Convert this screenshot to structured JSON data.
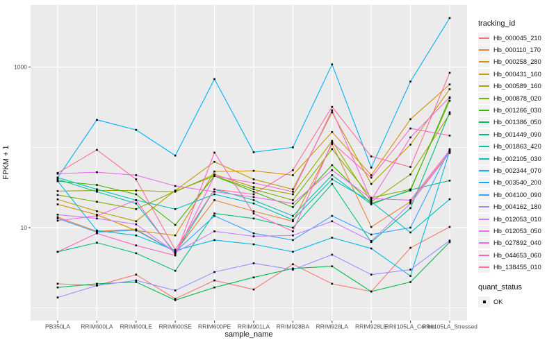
{
  "chart_data": {
    "type": "line",
    "title": "",
    "xlabel": "sample_name",
    "ylabel": "FPKM + 1",
    "y_scale": "log10",
    "y_major_breaks": [
      10,
      1000
    ],
    "y_minor_breaks": [
      1,
      100
    ],
    "ylim": [
      0.9,
      5600
    ],
    "grid": true,
    "legend": {
      "title": "tracking_id",
      "position": "right"
    },
    "point_legend": {
      "title": "quant_status",
      "items": [
        {
          "label": "OK",
          "shape": "square",
          "color": "#000000"
        }
      ]
    },
    "categories": [
      "PB350LA",
      "RRIM600LA",
      "RRIM600LE",
      "RRIM600SE",
      "RRIM600PE",
      "RRIM901LA",
      "RRIM928BA",
      "RRIM928LA",
      "RRIM928LE",
      "RRII105LA_Control",
      "RRII105LA_Stressed"
    ],
    "series": [
      {
        "name": "Hb_000045_210",
        "color": "#F8766D",
        "values": [
          2.0,
          1.9,
          2.6,
          1.3,
          2.2,
          1.7,
          3.5,
          2.0,
          1.6,
          5.6,
          10.2
        ]
      },
      {
        "name": "Hb_000110_170",
        "color": "#EA8331",
        "values": [
          13.5,
          9.0,
          9.5,
          5.0,
          22,
          16,
          12,
          110,
          10.2,
          21,
          88
        ]
      },
      {
        "name": "Hb_000258_280",
        "color": "#D89000",
        "values": [
          19.5,
          14.5,
          9.2,
          8.0,
          50,
          51,
          45,
          155,
          45,
          224,
          607
        ]
      },
      {
        "name": "Hb_000431_160",
        "color": "#C09B00",
        "values": [
          22.5,
          16,
          12,
          29,
          66,
          40,
          30,
          273,
          35,
          108,
          530
        ]
      },
      {
        "name": "Hb_000589_160",
        "color": "#A3A500",
        "values": [
          28.5,
          29,
          29,
          28,
          46,
          32,
          26,
          120,
          21,
          46,
          260
        ]
      },
      {
        "name": "Hb_000878_020",
        "color": "#7CAE00",
        "values": [
          25.5,
          21,
          17,
          28.5,
          44,
          30,
          22,
          95,
          23.5,
          30,
          380
        ]
      },
      {
        "name": "Hb_001266_030",
        "color": "#39B600",
        "values": [
          38,
          34,
          26,
          10.8,
          44,
          28,
          18,
          60,
          20,
          29,
          410
        ]
      },
      {
        "name": "Hb_001386_050",
        "color": "#00BB4E",
        "values": [
          1.8,
          2.0,
          2.1,
          1.25,
          1.8,
          2.4,
          3.1,
          3.3,
          1.6,
          2.1,
          6.6
        ]
      },
      {
        "name": "Hb_001449_090",
        "color": "#00BF7D",
        "values": [
          5.0,
          6.5,
          4.8,
          2.9,
          15,
          13,
          10,
          35,
          6.6,
          17.5,
          273
        ]
      },
      {
        "name": "Hb_001863_420",
        "color": "#00C1A3",
        "values": [
          40,
          28,
          20,
          4.8,
          30,
          22,
          14,
          45,
          19.5,
          29.5,
          38.5
        ]
      },
      {
        "name": "Hb_002105_030",
        "color": "#00BFC4",
        "values": [
          42,
          30,
          22,
          17,
          26,
          20,
          12.5,
          40,
          21,
          8.7,
          22.6
        ]
      },
      {
        "name": "Hb_002344_070",
        "color": "#00BAE0",
        "values": [
          38,
          9.2,
          8.0,
          5.2,
          7.0,
          6.2,
          5.0,
          7.5,
          5.5,
          2.5,
          90
        ]
      },
      {
        "name": "Hb_003540_200",
        "color": "#00B0F6",
        "values": [
          42,
          220,
          165,
          79,
          708,
          87,
          100,
          1080,
          56,
          660,
          4075
        ]
      },
      {
        "name": "Hb_004100_090",
        "color": "#35A2FF",
        "values": [
          13,
          8.8,
          9.3,
          5.0,
          14,
          8.5,
          7.0,
          14,
          8.2,
          10,
          95
        ]
      },
      {
        "name": "Hb_004162_180",
        "color": "#9590FF",
        "values": [
          1.35,
          1.9,
          2.2,
          1.65,
          2.8,
          3.6,
          3.0,
          4.6,
          2.6,
          3.0,
          6.9
        ]
      },
      {
        "name": "Hb_012053_010",
        "color": "#C77CFF",
        "values": [
          14.5,
          13,
          11,
          4.9,
          9.0,
          7.8,
          8.0,
          12,
          6.8,
          20,
          85
        ]
      },
      {
        "name": "Hb_012053_050",
        "color": "#E76BF3",
        "values": [
          47,
          49,
          45,
          33,
          28,
          24,
          20,
          52,
          23,
          22,
          92
        ]
      },
      {
        "name": "Hb_027892_040",
        "color": "#FA62DB",
        "values": [
          12.2,
          14,
          22,
          4.6,
          44,
          36,
          28,
          289,
          22,
          133,
          420
        ]
      },
      {
        "name": "Hb_044653_060",
        "color": "#FF62BC",
        "values": [
          5.0,
          8.5,
          6.0,
          4.5,
          86,
          15,
          9.0,
          115,
          42,
          172,
          140
        ]
      },
      {
        "name": "Hb_138455_010",
        "color": "#FF6A98",
        "values": [
          48,
          93,
          40,
          5.3,
          30,
          26,
          52,
          319,
          77,
          57,
          847
        ]
      }
    ]
  },
  "style": {
    "panel_bg": "#EBEBEB",
    "grid_color": "#FFFFFF",
    "axis_text_color": "#4D4D4D",
    "tick_color": "#333333",
    "legend_key_bg": "#F2F2F2",
    "point_color": "#000000"
  }
}
